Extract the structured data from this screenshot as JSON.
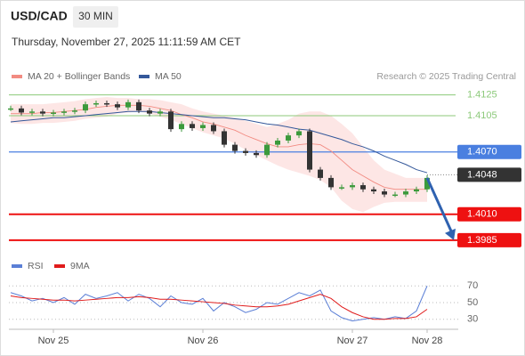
{
  "header": {
    "symbol": "USD/CAD",
    "interval": "30 MIN",
    "timestamp": "Thursday, November 27, 2025 11:11:59 AM CET"
  },
  "chart_data": [
    {
      "type": "candlestick",
      "source": "Research © 2025 Trading Central",
      "up_color": "#3c9a3c",
      "down_color": "#333333",
      "ylim": [
        1.3972,
        1.4135
      ],
      "values": [
        1.4112,
        1.4108,
        1.4109,
        1.4107,
        1.4108,
        1.4109,
        1.411,
        1.4116,
        1.4117,
        1.4116,
        1.4113,
        1.4118,
        1.411,
        1.4107,
        1.4109,
        1.4092,
        1.4097,
        1.4093,
        1.4096,
        1.409,
        1.4077,
        1.4071,
        1.4069,
        1.4067,
        1.4077,
        1.4081,
        1.4086,
        1.409,
        1.4053,
        1.4045,
        1.4036,
        1.4036,
        1.4038,
        1.4034,
        1.4032,
        1.4029,
        1.4029,
        1.4032,
        1.4034,
        1.4045
      ],
      "series": [
        {
          "name": "MA 20 + Bollinger Bands",
          "color": "#f28b82",
          "band_color": "#fde0de",
          "values": [
            1.4107,
            1.4107,
            1.4107,
            1.4108,
            1.4108,
            1.4109,
            1.411,
            1.4111,
            1.4113,
            1.4114,
            1.4115,
            1.4115,
            1.4115,
            1.4114,
            1.4112,
            1.411,
            1.4106,
            1.4103,
            1.4099,
            1.4097,
            1.4094,
            1.4091,
            1.4086,
            1.4082,
            1.4078,
            1.4075,
            1.4075,
            1.4077,
            1.4078,
            1.4077,
            1.4071,
            1.4062,
            1.4053,
            1.4047,
            1.4041,
            1.4036,
            1.4034,
            1.4034,
            1.4034,
            1.4034
          ],
          "upper": [
            1.4116,
            1.4116,
            1.4116,
            1.4116,
            1.4117,
            1.4118,
            1.4119,
            1.4121,
            1.4122,
            1.4123,
            1.4122,
            1.4122,
            1.4121,
            1.4121,
            1.412,
            1.4118,
            1.4116,
            1.4112,
            1.4109,
            1.4107,
            1.4105,
            1.4103,
            1.41,
            1.4097,
            1.4094,
            1.4097,
            1.4101,
            1.4107,
            1.4109,
            1.4109,
            1.4105,
            1.4097,
            1.4088,
            1.4075,
            1.4062,
            1.4053,
            1.4049,
            1.4045,
            1.4045,
            1.4045
          ],
          "lower": [
            1.4098,
            1.4097,
            1.4097,
            1.4098,
            1.4098,
            1.4099,
            1.41,
            1.4102,
            1.4103,
            1.4104,
            1.4107,
            1.4108,
            1.4109,
            1.4107,
            1.4104,
            1.4101,
            1.4097,
            1.4093,
            1.4089,
            1.4086,
            1.4083,
            1.4078,
            1.4072,
            1.4067,
            1.4062,
            1.4057,
            1.4053,
            1.405,
            1.4047,
            1.4043,
            1.4036,
            1.4023,
            1.4015,
            1.4012,
            1.4017,
            1.4021,
            1.4022,
            1.4022,
            1.4022,
            1.4022
          ]
        },
        {
          "name": "MA 50",
          "color": "#34589a",
          "values": [
            1.4099,
            1.41,
            1.4101,
            1.4102,
            1.4103,
            1.4103,
            1.4104,
            1.4105,
            1.4106,
            1.4107,
            1.4108,
            1.4109,
            1.4109,
            1.4109,
            1.4108,
            1.4107,
            1.4106,
            1.4105,
            1.4104,
            1.4103,
            1.4103,
            1.4102,
            1.4101,
            1.4099,
            1.4097,
            1.4096,
            1.4094,
            1.4092,
            1.4091,
            1.4088,
            1.4085,
            1.4082,
            1.4078,
            1.4075,
            1.4071,
            1.4066,
            1.4062,
            1.4058,
            1.4053,
            1.405
          ]
        }
      ],
      "levels": [
        {
          "value": 1.4125,
          "color": "#8cc97a",
          "style": "text"
        },
        {
          "value": 1.4105,
          "color": "#8cc97a",
          "style": "text"
        },
        {
          "value": 1.407,
          "label": "1.4070",
          "color": "#4a7fe0",
          "style": "box"
        },
        {
          "value": 1.4048,
          "color": "#333333",
          "style": "current"
        },
        {
          "value": 1.401,
          "label": "1.4010",
          "color": "#ee1111",
          "style": "box"
        },
        {
          "value": 1.3985,
          "color": "#ee1111",
          "style": "box"
        }
      ],
      "forecast_target": 1.3985,
      "forecast_color": "#2f62b0"
    },
    {
      "type": "line",
      "categories": [
        null,
        null,
        null,
        null,
        "Nov 25",
        null,
        null,
        null,
        null,
        null,
        null,
        null,
        null,
        null,
        null,
        null,
        null,
        null,
        "Nov 26",
        null,
        null,
        null,
        null,
        null,
        null,
        null,
        null,
        null,
        null,
        null,
        null,
        null,
        "Nov 27",
        null,
        null,
        null,
        null,
        null,
        null,
        "Nov 28"
      ],
      "ylim": [
        18,
        82
      ],
      "yticks": [
        30,
        50,
        70
      ],
      "series": [
        {
          "name": "RSI",
          "color": "#5b7fd6",
          "values": [
            62,
            58,
            52,
            55,
            50,
            56,
            48,
            60,
            55,
            58,
            62,
            52,
            60,
            55,
            45,
            58,
            50,
            48,
            55,
            40,
            50,
            45,
            38,
            42,
            50,
            48,
            55,
            62,
            58,
            65,
            40,
            32,
            28,
            30,
            32,
            30,
            33,
            31,
            40,
            70
          ]
        },
        {
          "name": "9MA",
          "color": "#e01b1b",
          "values": [
            58,
            56,
            55,
            54,
            53,
            53,
            52,
            53,
            54,
            55,
            56,
            56,
            57,
            56,
            54,
            54,
            53,
            52,
            51,
            50,
            49,
            47,
            46,
            45,
            45,
            46,
            48,
            52,
            56,
            60,
            55,
            45,
            38,
            33,
            30,
            30,
            31,
            31,
            33,
            42
          ]
        }
      ]
    }
  ]
}
